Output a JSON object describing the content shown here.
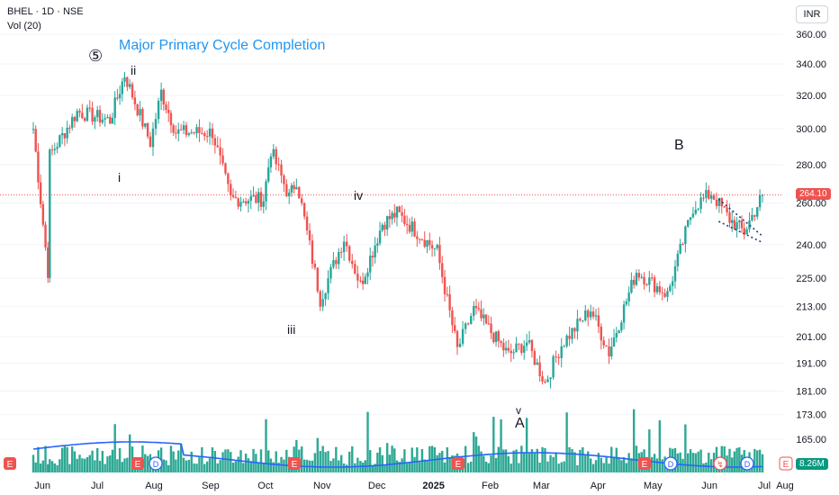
{
  "header": {
    "symbol": "BHEL · 1D · NSE",
    "volume_label": "Vol (20)",
    "currency": "INR"
  },
  "price_tag": "264.10",
  "volume_tag": "8.26M",
  "colors": {
    "up": "#26a69a",
    "down": "#ef5350",
    "volume": "#089981",
    "volume_ma": "#2962ff",
    "annotation_blue": "#2196f3",
    "price_line": "#ef5350",
    "wedge": "#1e3a8a"
  },
  "chart_data": {
    "type": "candlestick",
    "symbol": "BHEL",
    "interval": "1D",
    "exchange": "NSE",
    "y_scale": "log",
    "y_ticks": [
      "360.00",
      "340.00",
      "320.00",
      "300.00",
      "280.00",
      "260.00",
      "240.00",
      "225.00",
      "213.00",
      "201.00",
      "191.00",
      "181.00",
      "173.00",
      "165.00"
    ],
    "x_ticks": [
      "Jun",
      "Jul",
      "Aug",
      "Sep",
      "Oct",
      "Nov",
      "Dec",
      "2025",
      "Feb",
      "Mar",
      "Apr",
      "May",
      "Jun",
      "Jul",
      "Aug"
    ],
    "last_price": 264.1,
    "last_volume": "8.26M",
    "annotations": {
      "title_text": "Major Primary Cycle Completion",
      "wave5": "⑤",
      "ii": "ii",
      "i": "i",
      "iii": "iii",
      "iv": "iv",
      "v": "v",
      "A": "A",
      "B": "B"
    },
    "price_path": [
      {
        "t": "2024-05-27",
        "close": 300
      },
      {
        "t": "2024-06-04",
        "close": 228
      },
      {
        "t": "2024-06-05",
        "close": 285
      },
      {
        "t": "2024-06-20",
        "close": 310
      },
      {
        "t": "2024-07-08",
        "close": 305
      },
      {
        "t": "2024-07-16",
        "close": 333
      },
      {
        "t": "2024-07-30",
        "close": 292
      },
      {
        "t": "2024-08-05",
        "close": 322
      },
      {
        "t": "2024-08-13",
        "close": 298
      },
      {
        "t": "2024-09-02",
        "close": 298
      },
      {
        "t": "2024-09-12",
        "close": 262
      },
      {
        "t": "2024-09-30",
        "close": 262
      },
      {
        "t": "2024-10-04",
        "close": 288
      },
      {
        "t": "2024-10-14",
        "close": 263
      },
      {
        "t": "2024-10-18",
        "close": 272
      },
      {
        "t": "2024-10-31",
        "close": 216
      },
      {
        "t": "2024-11-13",
        "close": 243
      },
      {
        "t": "2024-11-22",
        "close": 222
      },
      {
        "t": "2024-12-04",
        "close": 250
      },
      {
        "t": "2024-12-12",
        "close": 255
      },
      {
        "t": "2025-01-03",
        "close": 237
      },
      {
        "t": "2025-01-14",
        "close": 196
      },
      {
        "t": "2025-01-23",
        "close": 212
      },
      {
        "t": "2025-02-11",
        "close": 194
      },
      {
        "t": "2025-02-21",
        "close": 199
      },
      {
        "t": "2025-03-03",
        "close": 184
      },
      {
        "t": "2025-03-12",
        "close": 198
      },
      {
        "t": "2025-03-28",
        "close": 212
      },
      {
        "t": "2025-04-07",
        "close": 195
      },
      {
        "t": "2025-04-22",
        "close": 228
      },
      {
        "t": "2025-05-09",
        "close": 218
      },
      {
        "t": "2025-05-23",
        "close": 258
      },
      {
        "t": "2025-06-02",
        "close": 265
      },
      {
        "t": "2025-06-12",
        "close": 252
      },
      {
        "t": "2025-06-20",
        "close": 246
      },
      {
        "t": "2025-06-30",
        "close": 264.1
      }
    ]
  }
}
